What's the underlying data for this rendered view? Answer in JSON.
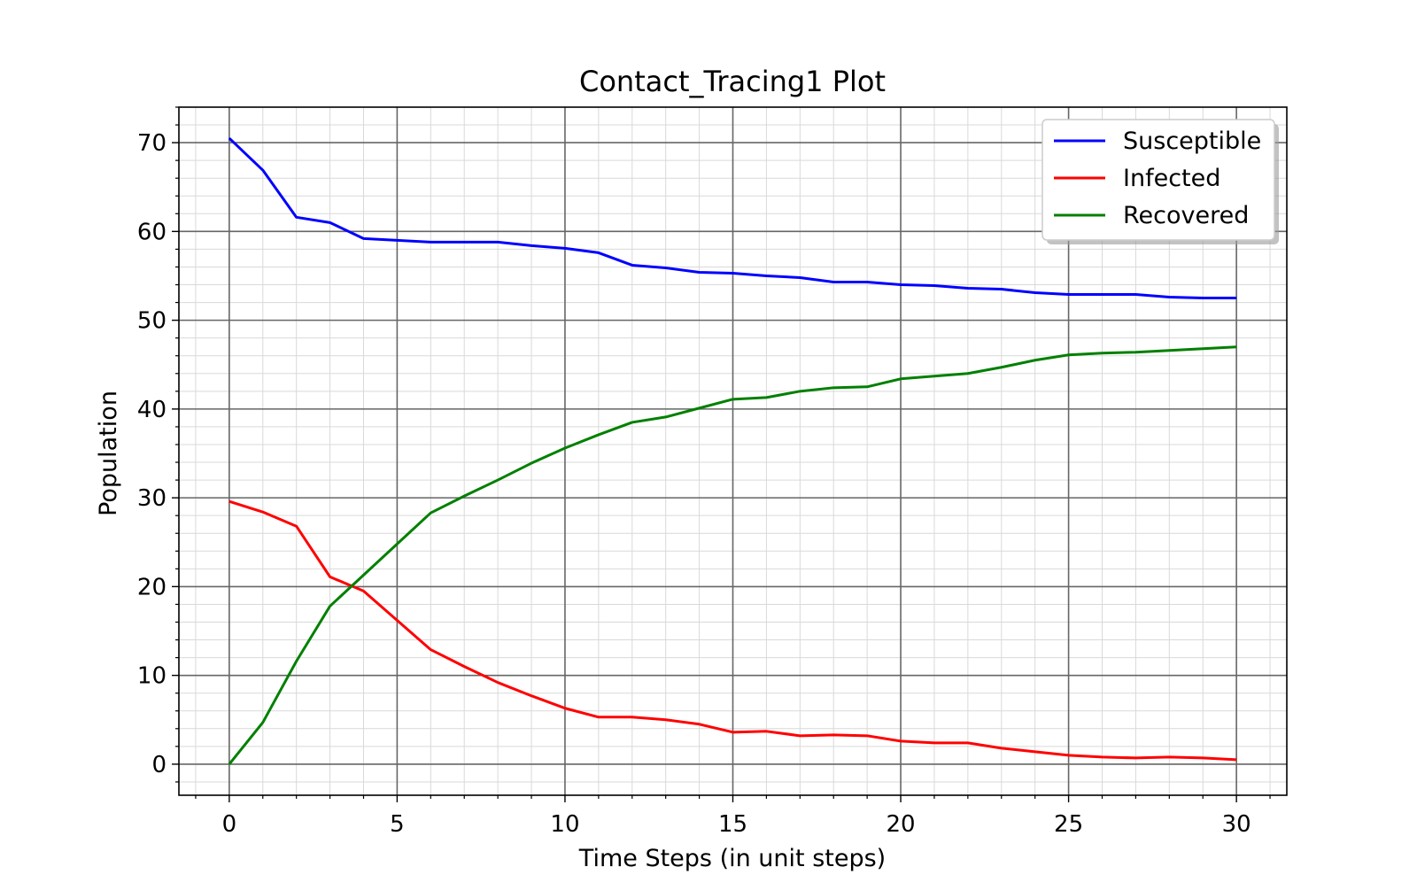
{
  "chart_data": {
    "type": "line",
    "title": "Contact_Tracing1 Plot",
    "xlabel": "Time Steps (in unit steps)",
    "ylabel": "Population",
    "xlim": [
      -1.5,
      31.5
    ],
    "ylim": [
      -3.5,
      74
    ],
    "xticks": [
      0,
      5,
      10,
      15,
      20,
      25,
      30
    ],
    "yticks": [
      0,
      10,
      20,
      30,
      40,
      50,
      60,
      70
    ],
    "grid": true,
    "minor_grid": true,
    "legend_position": "top-right",
    "x": [
      0,
      1,
      2,
      3,
      4,
      5,
      6,
      7,
      8,
      9,
      10,
      11,
      12,
      13,
      14,
      15,
      16,
      17,
      18,
      19,
      20,
      21,
      22,
      23,
      24,
      25,
      26,
      27,
      28,
      29,
      30
    ],
    "series": [
      {
        "name": "Susceptible",
        "color": "#0000ff",
        "values": [
          70.5,
          66.9,
          61.6,
          61.0,
          59.2,
          59.0,
          58.8,
          58.8,
          58.8,
          58.4,
          58.1,
          57.6,
          56.2,
          55.9,
          55.4,
          55.3,
          55.0,
          54.8,
          54.3,
          54.3,
          54.0,
          53.9,
          53.6,
          53.5,
          53.1,
          52.9,
          52.9,
          52.9,
          52.6,
          52.5,
          52.5
        ]
      },
      {
        "name": "Infected",
        "color": "#ff0000",
        "values": [
          29.6,
          28.4,
          26.8,
          21.1,
          19.5,
          16.2,
          12.9,
          11.0,
          9.2,
          7.7,
          6.3,
          5.3,
          5.3,
          5.0,
          4.5,
          3.6,
          3.7,
          3.2,
          3.3,
          3.2,
          2.6,
          2.4,
          2.4,
          1.8,
          1.4,
          1.0,
          0.8,
          0.7,
          0.8,
          0.7,
          0.5
        ]
      },
      {
        "name": "Recovered",
        "color": "#008000",
        "values": [
          0.0,
          4.7,
          11.6,
          17.8,
          21.3,
          24.8,
          28.3,
          30.2,
          32.0,
          33.9,
          35.6,
          37.1,
          38.5,
          39.1,
          40.1,
          41.1,
          41.3,
          42.0,
          42.4,
          42.5,
          43.4,
          43.7,
          44.0,
          44.7,
          45.5,
          46.1,
          46.3,
          46.4,
          46.6,
          46.8,
          47.0
        ]
      }
    ]
  }
}
